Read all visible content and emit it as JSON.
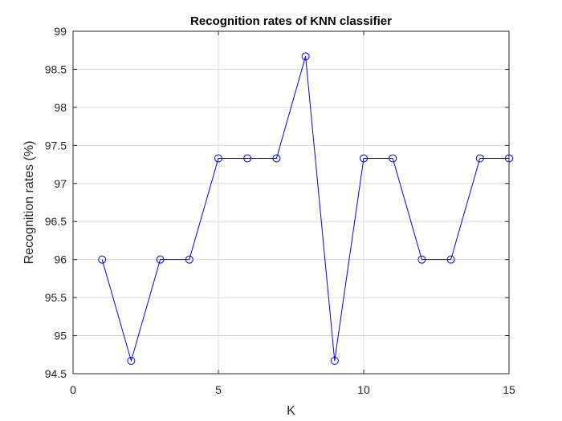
{
  "chart_data": {
    "type": "line",
    "title": "Recognition rates of KNN classifier",
    "xlabel": "K",
    "ylabel": "Recognition rates (%)",
    "xlim": [
      0,
      15
    ],
    "ylim": [
      94.5,
      99
    ],
    "xticks": [
      0,
      5,
      10,
      15
    ],
    "yticks": [
      94.5,
      95,
      95.5,
      96,
      96.5,
      97,
      97.5,
      98,
      98.5,
      99
    ],
    "grid": true,
    "marker": "circle",
    "line_color": "#0000ff",
    "series": [
      {
        "x": [
          1,
          2,
          3,
          4,
          5,
          6,
          7,
          8,
          9,
          10,
          11,
          12,
          13,
          14,
          15
        ],
        "values": [
          96.0,
          94.67,
          96.0,
          96.0,
          97.33,
          97.33,
          97.33,
          98.67,
          94.67,
          97.33,
          97.33,
          96.0,
          96.0,
          97.33,
          97.33
        ]
      }
    ]
  }
}
